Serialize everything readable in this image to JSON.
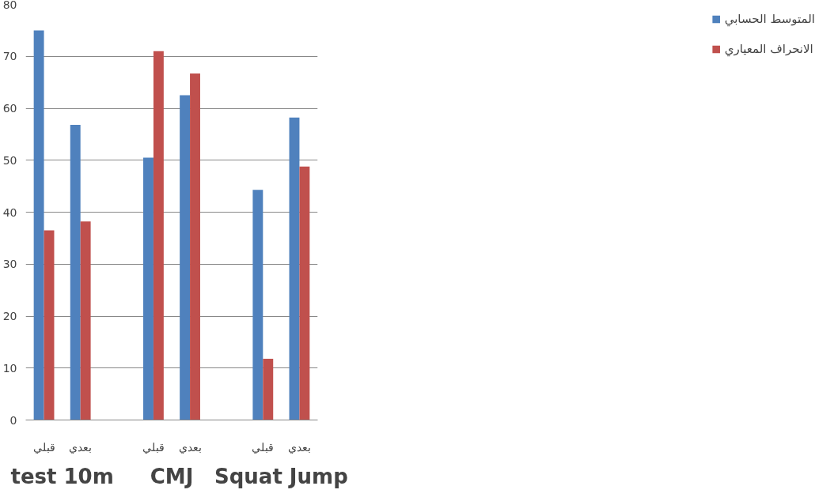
{
  "chart_data": {
    "type": "bar",
    "categories": [
      "قبلي",
      "بعدي",
      null,
      "قبلي",
      "بعدي",
      null,
      "قبلي",
      "بعدي"
    ],
    "series": [
      {
        "name": "المتوسط الحسابي",
        "color": "#4f81bd",
        "values": [
          75,
          56.8,
          null,
          50.5,
          62.5,
          null,
          44.3,
          58.2
        ]
      },
      {
        "name": "الانحراف المعياري",
        "color": "#c0504d",
        "values": [
          36.5,
          38.2,
          null,
          71,
          66.7,
          null,
          11.8,
          48.8
        ]
      }
    ],
    "annotations": [
      "test 10m",
      "CMJ",
      "Squat Jump"
    ],
    "ylim": [
      0,
      80
    ],
    "yticks": [
      0,
      10,
      20,
      30,
      40,
      50,
      60,
      70,
      80
    ],
    "grid": "y",
    "legend": "right"
  }
}
